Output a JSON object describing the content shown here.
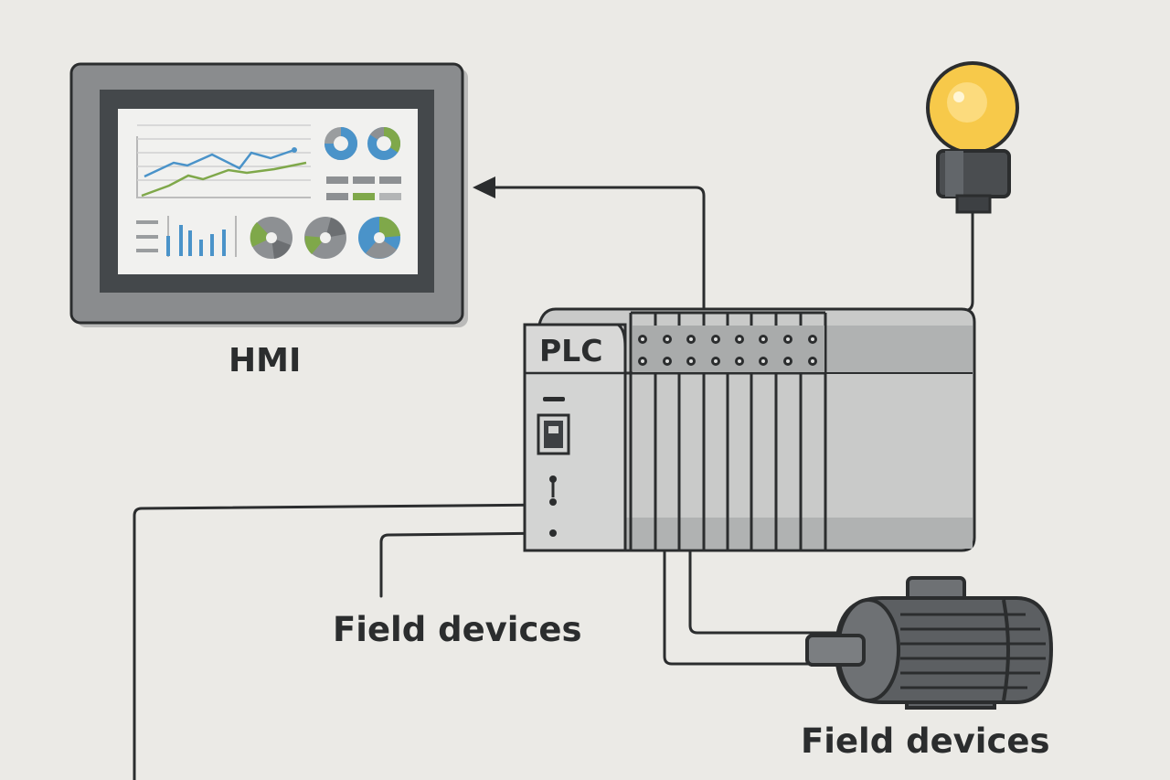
{
  "labels": {
    "hmi": "HMI",
    "plc": "PLC",
    "field_devices_left": "Field devices",
    "field_devices_right": "Field devices"
  },
  "icons": {
    "hmi": "hmi-panel-icon",
    "plc": "plc-rack-icon",
    "lamp": "light-bulb-icon",
    "motor": "electric-motor-icon"
  },
  "colors": {
    "background": "#ebeae6",
    "outline": "#2b2d2e",
    "bulb": "#f7c94a",
    "chart_blue": "#4a93c9",
    "chart_green": "#7fa84a"
  }
}
